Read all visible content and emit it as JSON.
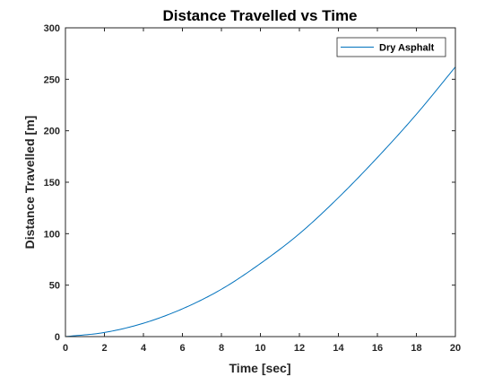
{
  "chart_data": {
    "type": "line",
    "title": "Distance Travelled vs Time",
    "xlabel": "Time [sec]",
    "ylabel": "Distance Travelled [m]",
    "xlim": [
      0,
      20
    ],
    "ylim": [
      0,
      300
    ],
    "xticks": [
      "0",
      "2",
      "4",
      "6",
      "8",
      "10",
      "12",
      "14",
      "16",
      "18",
      "20"
    ],
    "yticks": [
      "0",
      "50",
      "100",
      "150",
      "200",
      "250",
      "300"
    ],
    "grid": false,
    "legend_position": "top-right",
    "series": [
      {
        "name": "Dry Asphalt",
        "color": "#0072BD",
        "x": [
          0,
          2,
          4,
          6,
          8,
          10,
          12,
          14,
          16,
          18,
          20
        ],
        "y": [
          0,
          4,
          13,
          27,
          46,
          71,
          100,
          135,
          174,
          216,
          262
        ]
      }
    ]
  }
}
